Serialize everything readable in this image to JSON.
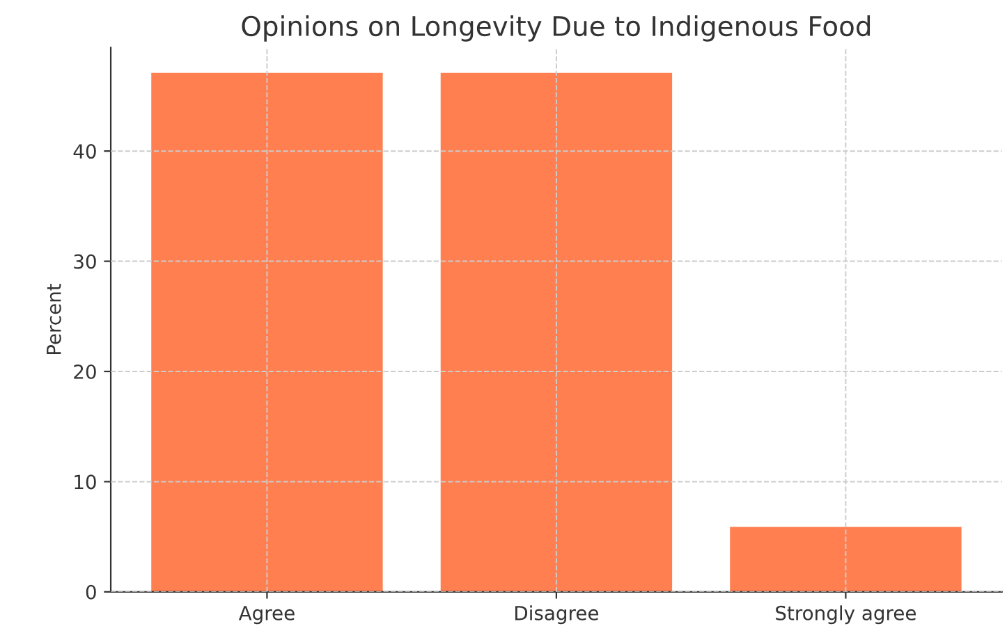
{
  "chart_data": {
    "type": "bar",
    "title": "Opinions on Longevity Due to Indigenous Food",
    "ylabel": "Percent",
    "categories": [
      "Agree",
      "Disagree",
      "Strongly agree"
    ],
    "values": [
      47.1,
      47.1,
      5.9
    ],
    "color": "#ff7f50",
    "ylim": [
      0,
      49.4
    ],
    "yticks": [
      0,
      10,
      20,
      30,
      40
    ],
    "grid": true
  }
}
